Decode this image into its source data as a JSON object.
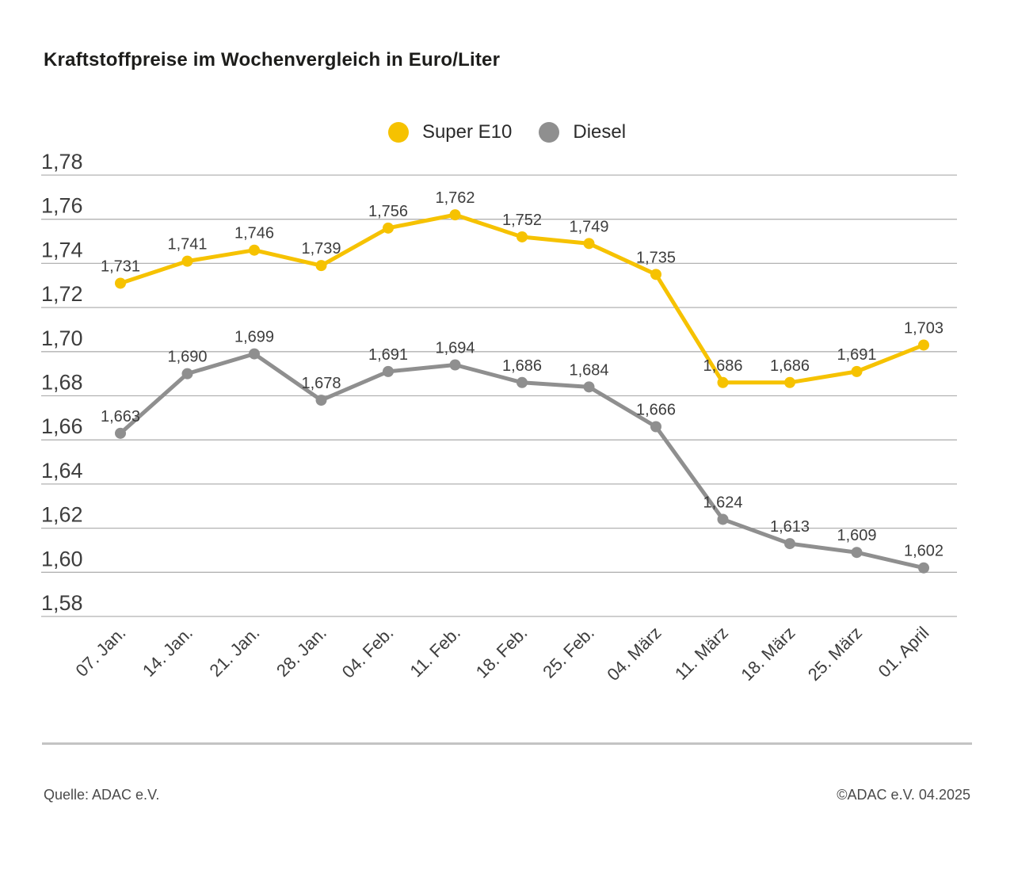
{
  "title": "Kraftstoffpreise im Wochenvergleich in Euro/Liter",
  "chart_data": {
    "type": "line",
    "title": "Kraftstoffpreise im Wochenvergleich in Euro/Liter",
    "categories": [
      "07. Jan.",
      "14. Jan.",
      "21. Jan.",
      "28. Jan.",
      "04. Feb.",
      "11. Feb.",
      "18. Feb.",
      "25. Feb.",
      "04. März",
      "11. März",
      "18. März",
      "25. März",
      "01. April"
    ],
    "series": [
      {
        "name": "Super E10",
        "color": "#f6c200",
        "values": [
          1.731,
          1.741,
          1.746,
          1.739,
          1.756,
          1.762,
          1.752,
          1.749,
          1.735,
          1.686,
          1.686,
          1.691,
          1.703
        ]
      },
      {
        "name": "Diesel",
        "color": "#8f8f8f",
        "values": [
          1.663,
          1.69,
          1.699,
          1.678,
          1.691,
          1.694,
          1.686,
          1.684,
          1.666,
          1.624,
          1.613,
          1.609,
          1.602
        ]
      }
    ],
    "xlabel": "",
    "ylabel": "",
    "ylim": [
      1.58,
      1.78
    ],
    "ytick_step": 0.02,
    "ytick_labels": [
      "1,78",
      "1,76",
      "1,74",
      "1,72",
      "1,70",
      "1,68",
      "1,66",
      "1,64",
      "1,62",
      "1,60",
      "1,58"
    ],
    "grid": true,
    "legend_position": "top-center",
    "decimal_separator": ",",
    "value_decimals": 3,
    "axis_decimals": 2,
    "data_labels_visible": true
  },
  "footer": {
    "source": "Quelle: ADAC e.V.",
    "copyright": "©ADAC e.V. 04.2025"
  },
  "colors": {
    "gridline": "#b2b2b2",
    "axis_text": "#3d3d3d",
    "label_text": "#3d3d3d",
    "title_text": "#1d1d1b",
    "divider": "#c4c4c4"
  }
}
